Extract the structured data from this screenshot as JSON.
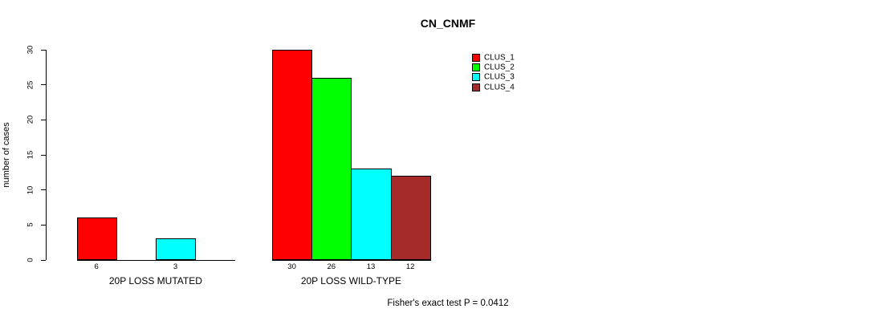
{
  "chart_data": {
    "type": "bar",
    "title": "CN_CNMF",
    "ylabel": "number of cases",
    "xlabel": "",
    "ylim": [
      0,
      30
    ],
    "yticks": [
      0,
      5,
      10,
      15,
      20,
      25,
      30
    ],
    "grid": false,
    "legend_position": "top-right",
    "background_color": "#FFFFFF",
    "text_color": "#000000",
    "categories": [
      "20P LOSS MUTATED",
      "20P LOSS WILD-TYPE"
    ],
    "series": [
      {
        "name": "CLUS_1",
        "color": "#FF0000",
        "values": [
          6,
          30
        ]
      },
      {
        "name": "CLUS_2",
        "color": "#00FF00",
        "values": [
          0,
          26
        ]
      },
      {
        "name": "CLUS_3",
        "color": "#00FFFF",
        "values": [
          3,
          13
        ]
      },
      {
        "name": "CLUS_4",
        "color": "#A52A2A",
        "values": [
          0,
          12
        ]
      }
    ],
    "bar_value_labels": [
      [
        "6",
        "",
        "3",
        ""
      ],
      [
        "30",
        "26",
        "13",
        "12"
      ]
    ],
    "annotation": "Fisher's exact test P = 0.0412"
  }
}
